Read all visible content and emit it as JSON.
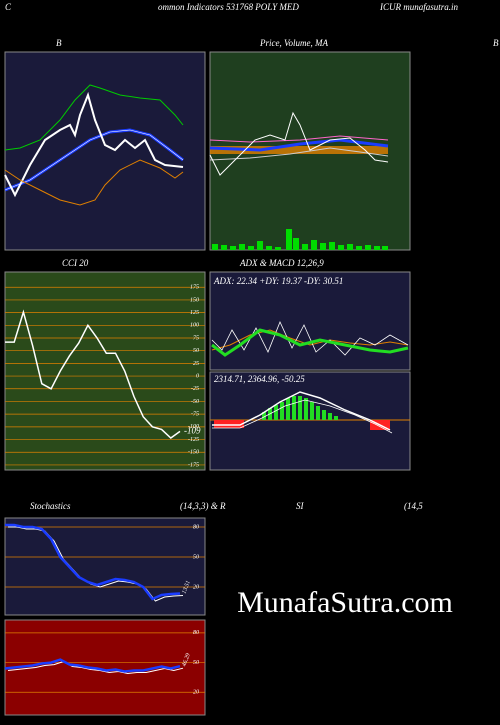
{
  "header": {
    "left": "C",
    "title": "ommon Indicators 531768 POLY MED",
    "right": "ICUR munafasutra.in"
  },
  "labels": {
    "bollinger": "B",
    "price": "Price, Volume, MA",
    "bollinger_right": "B",
    "adx": "ADX  & MACD 12,26,9",
    "adx_values": "ADX: 22.34   +DY: 19.37 -DY: 30.51",
    "macd_values": "2314.71,   2364.96,   -50.25",
    "stochastics": "Stochastics",
    "stoch_params": "(14,3,3) & R",
    "rsi": "SI",
    "rsi_params": "(14,5",
    "watermark": "MunafaSutra.com"
  },
  "chart_data": [
    {
      "type": "line",
      "title": "CCI 20",
      "color": "#ffffff",
      "ylim": [
        -185,
        205
      ],
      "yticks": [
        175,
        150,
        125,
        100,
        75,
        50,
        25,
        0,
        -25,
        -50,
        -75,
        -100,
        -125,
        -150,
        -175
      ],
      "values": [
        67,
        67,
        126,
        60,
        -15,
        -25,
        10,
        40,
        65,
        100,
        75,
        45,
        45,
        10,
        -40,
        -80,
        -100,
        -105,
        -122,
        -109
      ]
    },
    {
      "type": "line",
      "color": "#1a3cff",
      "ylim": [
        -8,
        89
      ],
      "yticks": [
        80,
        50,
        20
      ],
      "values": [
        82,
        82,
        80,
        80,
        78,
        68,
        50,
        40,
        30,
        25,
        22,
        25,
        28,
        27,
        25,
        20,
        8,
        12,
        13,
        13.51
      ]
    },
    {
      "type": "line",
      "color": "#1a3cff",
      "ylim": [
        -3,
        93
      ],
      "yticks": [
        80,
        50,
        20
      ],
      "values": [
        44,
        45,
        46,
        47,
        49,
        50,
        53,
        48,
        47,
        45,
        44,
        42,
        43,
        41,
        42,
        42,
        44,
        46,
        44,
        46.29
      ]
    }
  ]
}
